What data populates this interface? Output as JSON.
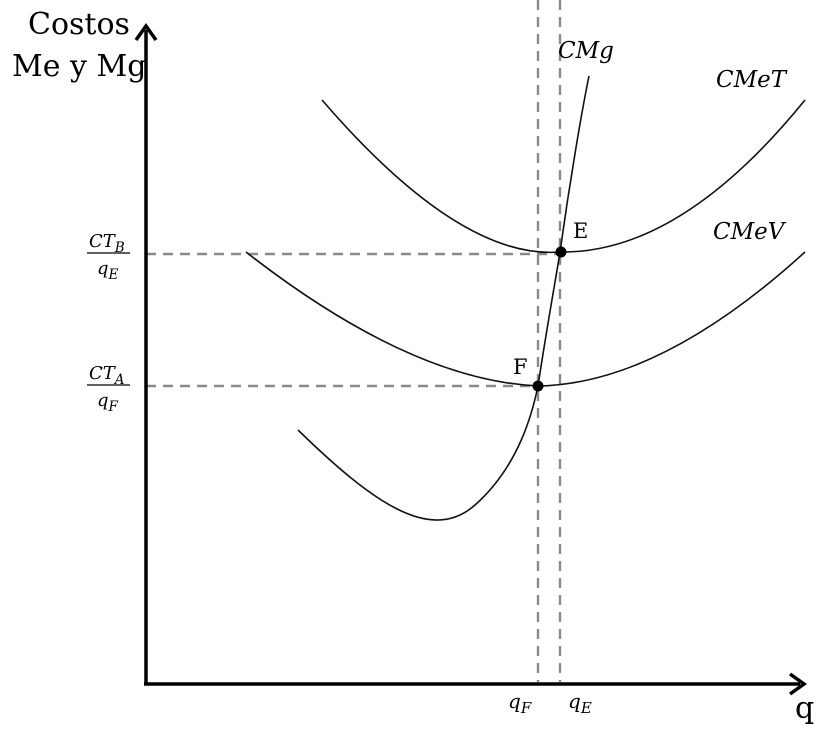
{
  "axes": {
    "y_label_line1": "Costos",
    "y_label_line2": "Me y Mg",
    "x_label": "q"
  },
  "curves": {
    "cmg_label": "CMg",
    "cmet_label": "CMeT",
    "cmev_label": "CMeV"
  },
  "points": {
    "e_label": "E",
    "f_label": "F"
  },
  "y_ticks": {
    "upper_num": "CT_B",
    "upper_den": "q_E",
    "lower_num": "CT_A",
    "lower_den": "q_F"
  },
  "x_ticks": {
    "qf": "q_F",
    "qe": "q_E"
  },
  "colors": {
    "curve": "#111111",
    "axis": "#000000",
    "guide": "#8a8a8a"
  }
}
